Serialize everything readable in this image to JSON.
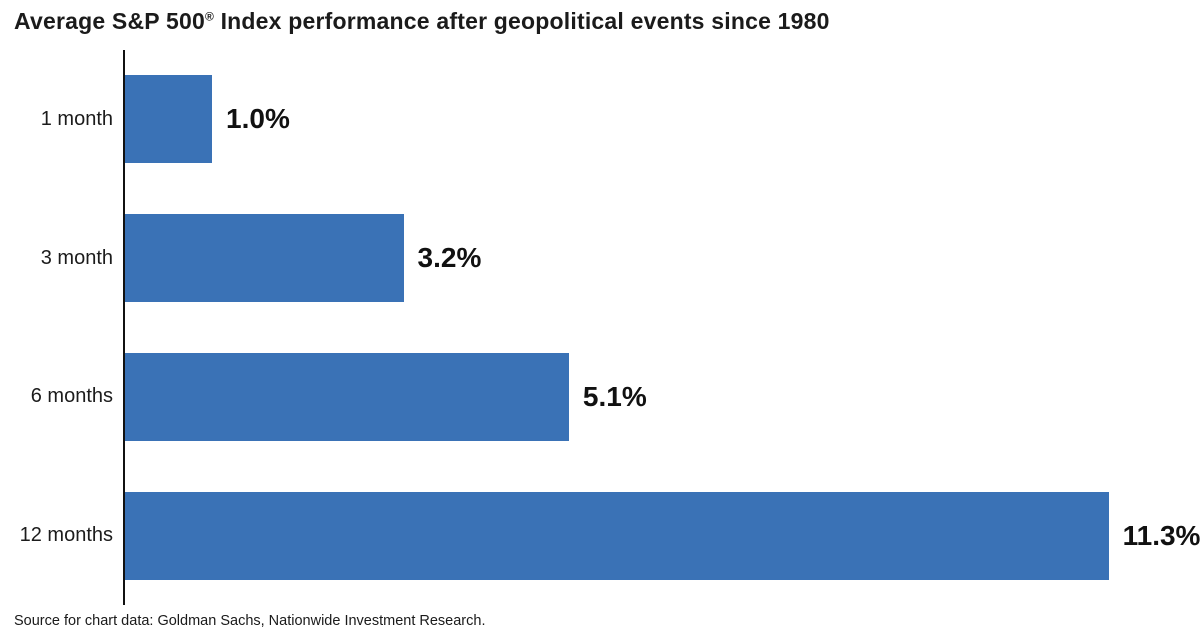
{
  "title": {
    "pre": "Average S&P 500",
    "mark": "®",
    "post": " Index performance after geopolitical events since 1980"
  },
  "source_note": "Source for chart data: Goldman Sachs, Nationwide Investment Research.",
  "colors": {
    "bar": "#3A72B6",
    "axis": "#111111",
    "title_text": "#1B1B1B",
    "label_text": "#1C1C1C"
  },
  "chart_data": {
    "type": "bar",
    "orientation": "horizontal",
    "title": "Average S&P 500® Index performance after geopolitical events since 1980",
    "categories": [
      "1 month",
      "3 month",
      "6 months",
      "12 months"
    ],
    "values": [
      1.0,
      3.2,
      5.1,
      11.3
    ],
    "value_labels": [
      "1.0%",
      "3.2%",
      "5.1%",
      "11.3%"
    ],
    "xlabel": "",
    "ylabel": "",
    "xlim": [
      0,
      12.35
    ],
    "grid": false,
    "legend": false,
    "source": "Source for chart data: Goldman Sachs, Nationwide Investment Research."
  }
}
